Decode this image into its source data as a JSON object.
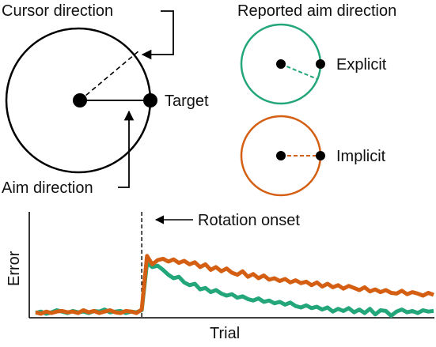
{
  "colors": {
    "explicit": "#23a67a",
    "implicit": "#d45f13",
    "ink": "#000000"
  },
  "diagram": {
    "cursor_direction_label": "Cursor direction",
    "target_label": "Target",
    "aim_direction_label": "Aim direction",
    "reported_aim_title": "Reported aim direction",
    "explicit_label": "Explicit",
    "implicit_label": "Implicit"
  },
  "chart_data": {
    "type": "line",
    "xlabel": "Trial",
    "ylabel": "Error",
    "annotations": [
      "Rotation onset"
    ],
    "rotation_onset_trial": 20,
    "ylim": [
      0,
      1
    ],
    "series": [
      {
        "color": "#23a67a",
        "values": [
          0.0,
          0.02,
          -0.01,
          0.01,
          0.04,
          0.02,
          0.0,
          0.03,
          0.01,
          0.02,
          0.0,
          0.03,
          0.02,
          0.05,
          0.01,
          0.02,
          0.03,
          0.0,
          0.02,
          0.01,
          0.04,
          0.72,
          0.66,
          0.68,
          0.62,
          0.55,
          0.5,
          0.52,
          0.44,
          0.4,
          0.42,
          0.34,
          0.36,
          0.3,
          0.33,
          0.28,
          0.25,
          0.27,
          0.22,
          0.24,
          0.2,
          0.18,
          0.21,
          0.16,
          0.18,
          0.14,
          0.16,
          0.12,
          0.15,
          0.1,
          0.08,
          0.11,
          0.07,
          0.09,
          0.05,
          0.08,
          0.02,
          0.06,
          0.03,
          0.07,
          0.01,
          0.05,
          0.0,
          0.06,
          -0.02,
          0.04,
          0.03,
          -0.04,
          0.02,
          0.05,
          0.01,
          0.03,
          0.0,
          0.04,
          0.02,
          0.03
        ]
      },
      {
        "color": "#d45f13",
        "values": [
          0.01,
          -0.01,
          0.02,
          0.0,
          0.02,
          0.03,
          0.01,
          0.02,
          0.0,
          0.04,
          0.01,
          0.03,
          0.0,
          0.02,
          0.04,
          0.01,
          0.0,
          0.03,
          0.02,
          0.0,
          0.05,
          0.82,
          0.7,
          0.76,
          0.78,
          0.74,
          0.77,
          0.72,
          0.75,
          0.7,
          0.73,
          0.66,
          0.7,
          0.62,
          0.66,
          0.6,
          0.64,
          0.58,
          0.55,
          0.6,
          0.52,
          0.56,
          0.5,
          0.54,
          0.48,
          0.5,
          0.46,
          0.49,
          0.44,
          0.47,
          0.43,
          0.45,
          0.4,
          0.44,
          0.38,
          0.42,
          0.37,
          0.4,
          0.35,
          0.39,
          0.36,
          0.33,
          0.37,
          0.31,
          0.34,
          0.3,
          0.33,
          0.29,
          0.28,
          0.32,
          0.27,
          0.3,
          0.28,
          0.25,
          0.29,
          0.26
        ]
      }
    ]
  }
}
